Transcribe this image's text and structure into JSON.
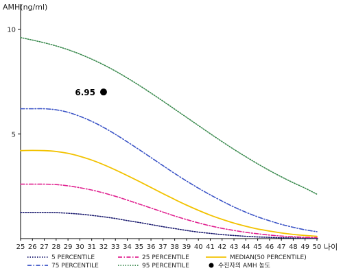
{
  "chart_data": {
    "type": "line",
    "ylabel": "AMH(ng/ml)",
    "xlabel": "나이",
    "xlim": [
      25,
      50
    ],
    "ylim": [
      0,
      11
    ],
    "x_ticks": [
      25,
      26,
      27,
      28,
      29,
      30,
      31,
      32,
      33,
      34,
      35,
      36,
      37,
      38,
      39,
      40,
      41,
      42,
      43,
      44,
      45,
      46,
      47,
      48,
      49,
      50
    ],
    "y_ticks": [
      5,
      10
    ],
    "x": [
      25,
      26,
      27,
      28,
      29,
      30,
      31,
      32,
      33,
      34,
      35,
      36,
      37,
      38,
      39,
      40,
      41,
      42,
      43,
      44,
      45,
      46,
      47,
      48,
      49,
      50
    ],
    "series": [
      {
        "name": "5 PERCENTILE",
        "color": "#1a1a6e",
        "style": "dotted",
        "values": [
          1.25,
          1.25,
          1.25,
          1.24,
          1.21,
          1.17,
          1.11,
          1.04,
          0.96,
          0.86,
          0.77,
          0.67,
          0.57,
          0.48,
          0.39,
          0.31,
          0.25,
          0.19,
          0.15,
          0.11,
          0.08,
          0.06,
          0.04,
          0.03,
          0.02,
          0.02
        ]
      },
      {
        "name": "25 PERCENTILE",
        "color": "#e0208f",
        "style": "dashdot",
        "values": [
          2.6,
          2.6,
          2.6,
          2.58,
          2.52,
          2.43,
          2.32,
          2.18,
          2.02,
          1.84,
          1.65,
          1.46,
          1.27,
          1.08,
          0.91,
          0.75,
          0.61,
          0.49,
          0.39,
          0.3,
          0.23,
          0.17,
          0.12,
          0.09,
          0.06,
          0.05
        ]
      },
      {
        "name": "MEDIAN(50 PERCENTILE)",
        "color": "#f2c200",
        "style": "solid",
        "values": [
          4.2,
          4.21,
          4.2,
          4.16,
          4.07,
          3.93,
          3.75,
          3.53,
          3.28,
          3.01,
          2.73,
          2.44,
          2.15,
          1.87,
          1.6,
          1.35,
          1.12,
          0.92,
          0.74,
          0.59,
          0.46,
          0.36,
          0.27,
          0.2,
          0.15,
          0.11
        ]
      },
      {
        "name": "75 PERCENTILE",
        "color": "#3a53c6",
        "style": "dashdot",
        "values": [
          6.2,
          6.2,
          6.2,
          6.15,
          6.03,
          5.84,
          5.6,
          5.31,
          4.98,
          4.62,
          4.25,
          3.87,
          3.49,
          3.11,
          2.75,
          2.41,
          2.09,
          1.79,
          1.51,
          1.26,
          1.04,
          0.85,
          0.68,
          0.54,
          0.42,
          0.33
        ]
      },
      {
        "name": "95 PERCENTILE",
        "color": "#3a8a4e",
        "style": "dotted",
        "values": [
          9.6,
          9.48,
          9.35,
          9.2,
          9.02,
          8.81,
          8.57,
          8.3,
          8.0,
          7.67,
          7.32,
          6.95,
          6.57,
          6.18,
          5.79,
          5.4,
          5.01,
          4.63,
          4.26,
          3.91,
          3.57,
          3.25,
          2.95,
          2.67,
          2.41,
          2.12
        ]
      }
    ],
    "points": [
      {
        "name": "수진자의 AMH 농도",
        "x": 32,
        "y": 7,
        "label": "6.95",
        "color": "#000000"
      }
    ],
    "legend": [
      {
        "label": "5 PERCENTILE",
        "color": "#1a1a6e",
        "style": "dotted"
      },
      {
        "label": "25 PERCENTILE",
        "color": "#e0208f",
        "style": "dashdot"
      },
      {
        "label": "MEDIAN(50 PERCENTILE)",
        "color": "#f2c200",
        "style": "solid"
      },
      {
        "label": "75 PERCENTILE",
        "color": "#3a53c6",
        "style": "dashdot"
      },
      {
        "label": "95 PERCENTILE",
        "color": "#3a8a4e",
        "style": "dotted"
      },
      {
        "label": "수진자의 AMH 농도",
        "color": "#000000",
        "style": "marker"
      }
    ],
    "legend_position": "bottom",
    "grid": false
  }
}
